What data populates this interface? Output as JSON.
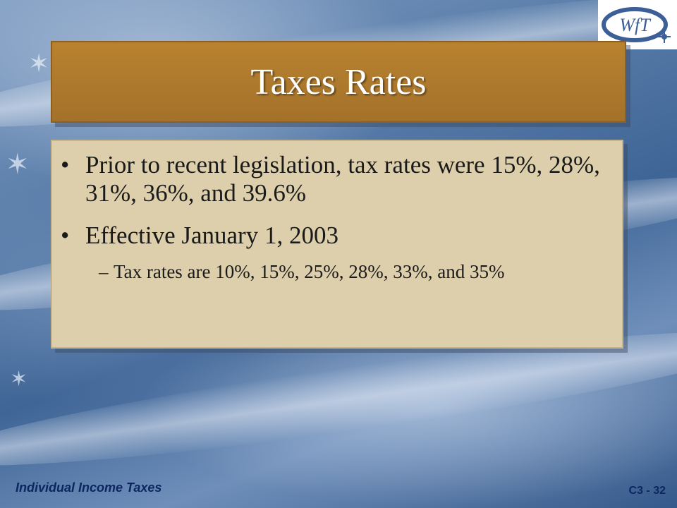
{
  "slide": {
    "title": "Taxes Rates",
    "bullets": [
      {
        "marker": "•",
        "text": "Prior to recent legislation, tax rates were 15%, 28%, 31%, 36%, and 39.6%"
      },
      {
        "marker": "•",
        "text": "Effective January 1, 2003"
      }
    ],
    "sub_bullets": [
      {
        "marker": "–",
        "text": "Tax rates are 10%, 15%, 25%, 28%, 33%, and 35%"
      }
    ]
  },
  "logo": {
    "text": "WfT"
  },
  "footer": {
    "left": "Individual Income Taxes",
    "right": "C3 - 32"
  },
  "colors": {
    "title_panel": "#a4712a",
    "content_panel": "#ddcfab",
    "footer_text": "#0c2760",
    "logo": "#3c5f98"
  }
}
